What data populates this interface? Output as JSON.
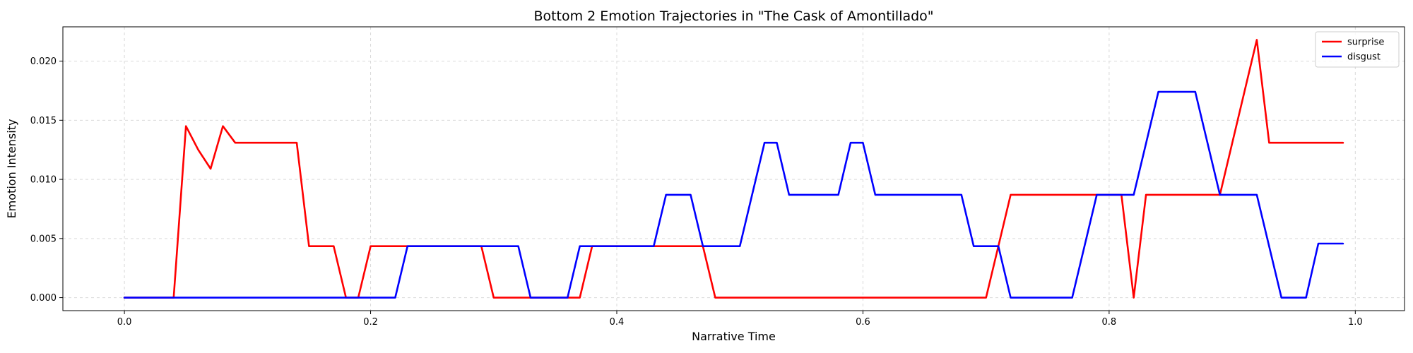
{
  "chart_data": {
    "type": "line",
    "title": "Bottom 2 Emotion Trajectories in \"The Cask of Amontillado\"",
    "xlabel": "Narrative Time",
    "ylabel": "Emotion Intensity",
    "xlim": [
      -0.05,
      1.04
    ],
    "ylim": [
      -0.0011,
      0.0229
    ],
    "xticks": [
      0.0,
      0.2,
      0.4,
      0.6,
      0.8,
      1.0
    ],
    "xtick_labels": [
      "0.0",
      "0.2",
      "0.4",
      "0.6",
      "0.8",
      "1.0"
    ],
    "yticks": [
      0.0,
      0.005,
      0.01,
      0.015,
      0.02
    ],
    "ytick_labels": [
      "0.000",
      "0.005",
      "0.010",
      "0.015",
      "0.020"
    ],
    "grid": true,
    "legend_position": "top-right",
    "series": [
      {
        "name": "surprise",
        "color": "#ff0000",
        "points": [
          [
            0.0,
            0.0
          ],
          [
            0.04,
            0.0
          ],
          [
            0.05,
            0.0145
          ],
          [
            0.06,
            0.0125
          ],
          [
            0.07,
            0.0109
          ],
          [
            0.08,
            0.0145
          ],
          [
            0.09,
            0.0131
          ],
          [
            0.14,
            0.0131
          ],
          [
            0.15,
            0.00435
          ],
          [
            0.17,
            0.00435
          ],
          [
            0.18,
            0.0
          ],
          [
            0.19,
            0.0
          ],
          [
            0.2,
            0.00435
          ],
          [
            0.29,
            0.00435
          ],
          [
            0.3,
            0.0
          ],
          [
            0.33,
            0.0
          ],
          [
            0.36,
            0.0
          ],
          [
            0.37,
            0.0
          ],
          [
            0.38,
            0.00435
          ],
          [
            0.47,
            0.00435
          ],
          [
            0.48,
            0.0
          ],
          [
            0.7,
            0.0
          ],
          [
            0.72,
            0.0087
          ],
          [
            0.8,
            0.0087
          ],
          [
            0.81,
            0.0087
          ],
          [
            0.82,
            0.0
          ],
          [
            0.83,
            0.0087
          ],
          [
            0.89,
            0.0087
          ],
          [
            0.92,
            0.0218
          ],
          [
            0.93,
            0.0131
          ],
          [
            0.99,
            0.0131
          ]
        ]
      },
      {
        "name": "disgust",
        "color": "#0000ff",
        "points": [
          [
            0.0,
            0.0
          ],
          [
            0.22,
            0.0
          ],
          [
            0.23,
            0.00435
          ],
          [
            0.32,
            0.00435
          ],
          [
            0.33,
            0.0
          ],
          [
            0.36,
            0.0
          ],
          [
            0.37,
            0.00435
          ],
          [
            0.43,
            0.00435
          ],
          [
            0.44,
            0.0087
          ],
          [
            0.46,
            0.0087
          ],
          [
            0.47,
            0.00435
          ],
          [
            0.5,
            0.00435
          ],
          [
            0.52,
            0.0131
          ],
          [
            0.53,
            0.0131
          ],
          [
            0.54,
            0.0087
          ],
          [
            0.58,
            0.0087
          ],
          [
            0.59,
            0.0131
          ],
          [
            0.6,
            0.0131
          ],
          [
            0.61,
            0.0087
          ],
          [
            0.68,
            0.0087
          ],
          [
            0.69,
            0.00435
          ],
          [
            0.71,
            0.00435
          ],
          [
            0.72,
            0.0
          ],
          [
            0.77,
            0.0
          ],
          [
            0.79,
            0.0087
          ],
          [
            0.82,
            0.0087
          ],
          [
            0.84,
            0.0174
          ],
          [
            0.87,
            0.0174
          ],
          [
            0.89,
            0.0087
          ],
          [
            0.92,
            0.0087
          ],
          [
            0.94,
            0.0
          ],
          [
            0.96,
            0.0
          ],
          [
            0.97,
            0.00457
          ],
          [
            0.99,
            0.00457
          ]
        ]
      }
    ]
  }
}
